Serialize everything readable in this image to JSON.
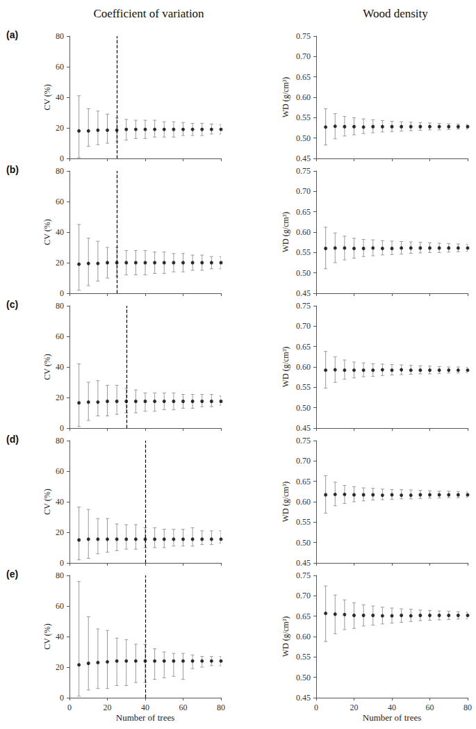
{
  "chart_data": [
    {
      "type": "scatter",
      "title": "Coefficient of variation",
      "panel_label": "(a)",
      "ylabel": "CV (%)",
      "tick_labels": "y",
      "x": [
        5,
        10,
        15,
        20,
        25,
        30,
        35,
        40,
        45,
        50,
        55,
        60,
        65,
        70,
        75,
        80
      ],
      "values": [
        18,
        18,
        18.5,
        18.5,
        18.5,
        19,
        19,
        19,
        19,
        19,
        19,
        19,
        19,
        19,
        19,
        19
      ],
      "error_low": [
        0.5,
        8,
        9,
        10,
        11,
        12,
        13,
        13,
        14,
        14,
        14,
        15,
        15,
        15,
        16,
        16
      ],
      "error_high": [
        41,
        32.5,
        31,
        29,
        26.5,
        25.5,
        25,
        25,
        25,
        24,
        24,
        23.5,
        23,
        23,
        22.5,
        22
      ],
      "vline": 25,
      "color": "#000000",
      "xlim": [
        0,
        80
      ],
      "xticks": [
        0,
        20,
        40,
        60,
        80
      ],
      "ylim": [
        0,
        80
      ],
      "yticks": [
        0,
        20,
        40,
        60,
        80
      ]
    },
    {
      "type": "scatter",
      "title": "Wood density",
      "ylabel": "WD (g/cm³)",
      "tick_labels": "y",
      "x": [
        5,
        10,
        15,
        20,
        25,
        30,
        35,
        40,
        45,
        50,
        55,
        60,
        65,
        70,
        75,
        80
      ],
      "values": [
        0.527,
        0.529,
        0.528,
        0.528,
        0.527,
        0.528,
        0.528,
        0.528,
        0.528,
        0.528,
        0.528,
        0.528,
        0.528,
        0.528,
        0.528,
        0.528
      ],
      "error_low": [
        0.483,
        0.498,
        0.505,
        0.508,
        0.511,
        0.513,
        0.515,
        0.516,
        0.517,
        0.518,
        0.519,
        0.52,
        0.52,
        0.521,
        0.522,
        0.522
      ],
      "error_high": [
        0.572,
        0.56,
        0.553,
        0.55,
        0.547,
        0.545,
        0.543,
        0.541,
        0.54,
        0.539,
        0.538,
        0.537,
        0.536,
        0.535,
        0.534,
        0.533
      ],
      "color": "#000000",
      "xlim": [
        0,
        80
      ],
      "xticks": [
        0,
        20,
        40,
        60,
        80
      ],
      "ylim": [
        0.45,
        0.75
      ],
      "yticks": [
        0.45,
        {
          "value": 0.5,
          "label": "0.50"
        },
        0.55,
        {
          "value": 0.6,
          "label": "0.60"
        },
        0.65,
        {
          "value": 0.7,
          "label": "0.70"
        },
        0.75
      ]
    },
    {
      "type": "scatter",
      "panel_label": "(b)",
      "ylabel": "CV (%)",
      "tick_labels": "y",
      "x": [
        5,
        10,
        15,
        20,
        25,
        30,
        35,
        40,
        45,
        50,
        55,
        60,
        65,
        70,
        75,
        80
      ],
      "values": [
        19,
        19.5,
        19.5,
        20,
        20,
        20,
        20,
        20,
        20,
        20,
        20,
        20,
        20,
        20,
        20,
        20
      ],
      "error_low": [
        2,
        5,
        8,
        10,
        11,
        12,
        12,
        12,
        13,
        13,
        14,
        14,
        15,
        15,
        16,
        16
      ],
      "error_high": [
        45,
        36,
        34,
        30,
        30,
        28,
        28,
        28,
        27,
        27,
        26,
        26,
        25,
        25,
        24,
        24
      ],
      "vline": 25,
      "color": "#000000",
      "xlim": [
        0,
        80
      ],
      "xticks": [
        0,
        20,
        40,
        60,
        80
      ],
      "ylim": [
        0,
        80
      ],
      "yticks": [
        0,
        20,
        40,
        60,
        80
      ]
    },
    {
      "type": "scatter",
      "ylabel": "WD (g/cm³)",
      "tick_labels": "y",
      "x": [
        5,
        10,
        15,
        20,
        25,
        30,
        35,
        40,
        45,
        50,
        55,
        60,
        65,
        70,
        75,
        80
      ],
      "values": [
        0.56,
        0.561,
        0.561,
        0.56,
        0.56,
        0.561,
        0.56,
        0.56,
        0.561,
        0.561,
        0.561,
        0.561,
        0.561,
        0.561,
        0.561,
        0.561
      ],
      "error_low": [
        0.51,
        0.525,
        0.532,
        0.536,
        0.54,
        0.542,
        0.544,
        0.545,
        0.546,
        0.548,
        0.549,
        0.55,
        0.55,
        0.551,
        0.552,
        0.553
      ],
      "error_high": [
        0.612,
        0.598,
        0.59,
        0.585,
        0.582,
        0.581,
        0.579,
        0.578,
        0.577,
        0.576,
        0.575,
        0.574,
        0.573,
        0.572,
        0.571,
        0.57
      ],
      "color": "#000000",
      "xlim": [
        0,
        80
      ],
      "xticks": [
        0,
        20,
        40,
        60,
        80
      ],
      "ylim": [
        0.45,
        0.75
      ],
      "yticks": [
        0.45,
        {
          "value": 0.5,
          "label": "0.50"
        },
        0.55,
        {
          "value": 0.6,
          "label": "0.60"
        },
        0.65,
        {
          "value": 0.7,
          "label": "0.70"
        },
        0.75
      ]
    },
    {
      "type": "scatter",
      "panel_label": "(c)",
      "ylabel": "CV (%)",
      "tick_labels": "y",
      "x": [
        5,
        10,
        15,
        20,
        25,
        30,
        35,
        40,
        45,
        50,
        55,
        60,
        65,
        70,
        75,
        80
      ],
      "values": [
        16.5,
        17,
        17,
        17.5,
        17.5,
        17.5,
        17.5,
        17.5,
        17.5,
        17.5,
        17.5,
        17.5,
        17.5,
        17.5,
        17.5,
        17.5
      ],
      "error_low": [
        1,
        5,
        8,
        8,
        9,
        10,
        10,
        11,
        11,
        12,
        12,
        13,
        13,
        14,
        14,
        15
      ],
      "error_high": [
        42,
        30,
        31,
        28,
        28,
        26,
        25,
        23,
        23,
        23,
        23,
        22,
        22,
        22,
        22,
        21
      ],
      "vline": 30,
      "color": "#000000",
      "xlim": [
        0,
        80
      ],
      "xticks": [
        0,
        20,
        40,
        60,
        80
      ],
      "ylim": [
        0,
        80
      ],
      "yticks": [
        0,
        20,
        40,
        60,
        80
      ]
    },
    {
      "type": "scatter",
      "ylabel": "WD (g/cm³)",
      "tick_labels": "y",
      "x": [
        5,
        10,
        15,
        20,
        25,
        30,
        35,
        40,
        45,
        50,
        55,
        60,
        65,
        70,
        75,
        80
      ],
      "values": [
        0.592,
        0.593,
        0.592,
        0.592,
        0.592,
        0.592,
        0.593,
        0.592,
        0.593,
        0.592,
        0.592,
        0.592,
        0.592,
        0.592,
        0.592,
        0.592
      ],
      "error_low": [
        0.548,
        0.562,
        0.57,
        0.573,
        0.576,
        0.577,
        0.579,
        0.58,
        0.581,
        0.582,
        0.583,
        0.583,
        0.584,
        0.585,
        0.585,
        0.586
      ],
      "error_high": [
        0.638,
        0.625,
        0.617,
        0.612,
        0.61,
        0.608,
        0.607,
        0.606,
        0.605,
        0.604,
        0.603,
        0.602,
        0.601,
        0.6,
        0.6,
        0.599
      ],
      "color": "#000000",
      "xlim": [
        0,
        80
      ],
      "xticks": [
        0,
        20,
        40,
        60,
        80
      ],
      "ylim": [
        0.45,
        0.75
      ],
      "yticks": [
        0.45,
        {
          "value": 0.5,
          "label": "0.50"
        },
        0.55,
        {
          "value": 0.6,
          "label": "0.60"
        },
        0.65,
        {
          "value": 0.7,
          "label": "0.70"
        },
        0.75
      ]
    },
    {
      "type": "scatter",
      "panel_label": "(d)",
      "ylabel": "CV (%)",
      "tick_labels": "y",
      "x": [
        5,
        10,
        15,
        20,
        25,
        30,
        35,
        40,
        45,
        50,
        55,
        60,
        65,
        70,
        75,
        80
      ],
      "values": [
        15,
        15.5,
        15.5,
        15.5,
        15.5,
        15.5,
        15.5,
        15.5,
        15.5,
        15.5,
        15.5,
        15.5,
        15.5,
        15.5,
        15.5,
        15.5
      ],
      "error_low": [
        2,
        3,
        6,
        7,
        8,
        9,
        9,
        10,
        10,
        10,
        11,
        11,
        11,
        12,
        12,
        13
      ],
      "error_high": [
        36.5,
        35,
        29,
        29,
        25.5,
        25,
        25,
        23,
        23,
        22,
        22,
        22,
        23,
        21,
        21,
        21
      ],
      "vline": 40,
      "color": "#000000",
      "xlim": [
        0,
        80
      ],
      "xticks": [
        0,
        20,
        40,
        60,
        80
      ],
      "ylim": [
        0,
        80
      ],
      "yticks": [
        0,
        20,
        40,
        60,
        80
      ]
    },
    {
      "type": "scatter",
      "ylabel": "WD (g/cm³)",
      "tick_labels": "y",
      "x": [
        5,
        10,
        15,
        20,
        25,
        30,
        35,
        40,
        45,
        50,
        55,
        60,
        65,
        70,
        75,
        80
      ],
      "values": [
        0.617,
        0.618,
        0.618,
        0.617,
        0.617,
        0.617,
        0.616,
        0.617,
        0.616,
        0.616,
        0.617,
        0.617,
        0.617,
        0.617,
        0.617,
        0.617
      ],
      "error_low": [
        0.572,
        0.59,
        0.596,
        0.6,
        0.602,
        0.604,
        0.605,
        0.606,
        0.607,
        0.607,
        0.608,
        0.609,
        0.609,
        0.61,
        0.61,
        0.611
      ],
      "error_high": [
        0.664,
        0.648,
        0.64,
        0.637,
        0.634,
        0.633,
        0.631,
        0.63,
        0.63,
        0.629,
        0.628,
        0.627,
        0.626,
        0.626,
        0.625,
        0.624
      ],
      "color": "#000000",
      "xlim": [
        0,
        80
      ],
      "xticks": [
        0,
        20,
        40,
        60,
        80
      ],
      "ylim": [
        0.45,
        0.75
      ],
      "yticks": [
        0.45,
        {
          "value": 0.5,
          "label": "0.50"
        },
        0.55,
        {
          "value": 0.6,
          "label": "0.60"
        },
        0.65,
        {
          "value": 0.7,
          "label": "0.70"
        },
        0.75
      ]
    },
    {
      "type": "scatter",
      "panel_label": "(e)",
      "ylabel": "CV (%)",
      "xlabel": "Number of trees",
      "x": [
        5,
        10,
        15,
        20,
        25,
        30,
        35,
        40,
        45,
        50,
        55,
        60,
        65,
        70,
        75,
        80
      ],
      "values": [
        21.5,
        22.5,
        23,
        23.5,
        24,
        24,
        24,
        24,
        24,
        24,
        24,
        24,
        24,
        24,
        24,
        24
      ],
      "error_low": [
        1,
        5,
        6,
        6,
        8,
        8,
        10,
        10,
        12,
        13,
        14,
        12,
        19,
        20,
        21,
        21
      ],
      "error_high": [
        76,
        53,
        45,
        44,
        39,
        38,
        35,
        35,
        32,
        30,
        29,
        29,
        28,
        27,
        27,
        27
      ],
      "vline": 40,
      "color": "#000000",
      "xlim": [
        0,
        80
      ],
      "xticks": [
        0,
        20,
        40,
        60,
        80
      ],
      "ylim": [
        0,
        80
      ],
      "yticks": [
        0,
        20,
        40,
        60,
        80
      ]
    },
    {
      "type": "scatter",
      "ylabel": "WD (g/cm³)",
      "xlabel": "Number of trees",
      "x": [
        5,
        10,
        15,
        20,
        25,
        30,
        35,
        40,
        45,
        50,
        55,
        60,
        65,
        70,
        75,
        80
      ],
      "values": [
        0.657,
        0.655,
        0.654,
        0.652,
        0.652,
        0.652,
        0.651,
        0.651,
        0.652,
        0.651,
        0.652,
        0.652,
        0.652,
        0.652,
        0.652,
        0.652
      ],
      "error_low": [
        0.588,
        0.607,
        0.617,
        0.62,
        0.626,
        0.628,
        0.631,
        0.633,
        0.635,
        0.637,
        0.639,
        0.64,
        0.641,
        0.642,
        0.643,
        0.644
      ],
      "error_high": [
        0.724,
        0.702,
        0.69,
        0.683,
        0.678,
        0.675,
        0.672,
        0.67,
        0.668,
        0.667,
        0.665,
        0.664,
        0.663,
        0.662,
        0.661,
        0.66
      ],
      "color": "#000000",
      "xlim": [
        0,
        80
      ],
      "xticks": [
        0,
        20,
        40,
        60,
        80
      ],
      "ylim": [
        0.45,
        0.75
      ],
      "yticks": [
        0.45,
        {
          "value": 0.5,
          "label": "0.50"
        },
        0.55,
        {
          "value": 0.6,
          "label": "0.60"
        },
        0.65,
        {
          "value": 0.7,
          "label": "0.70"
        },
        0.75
      ]
    }
  ]
}
